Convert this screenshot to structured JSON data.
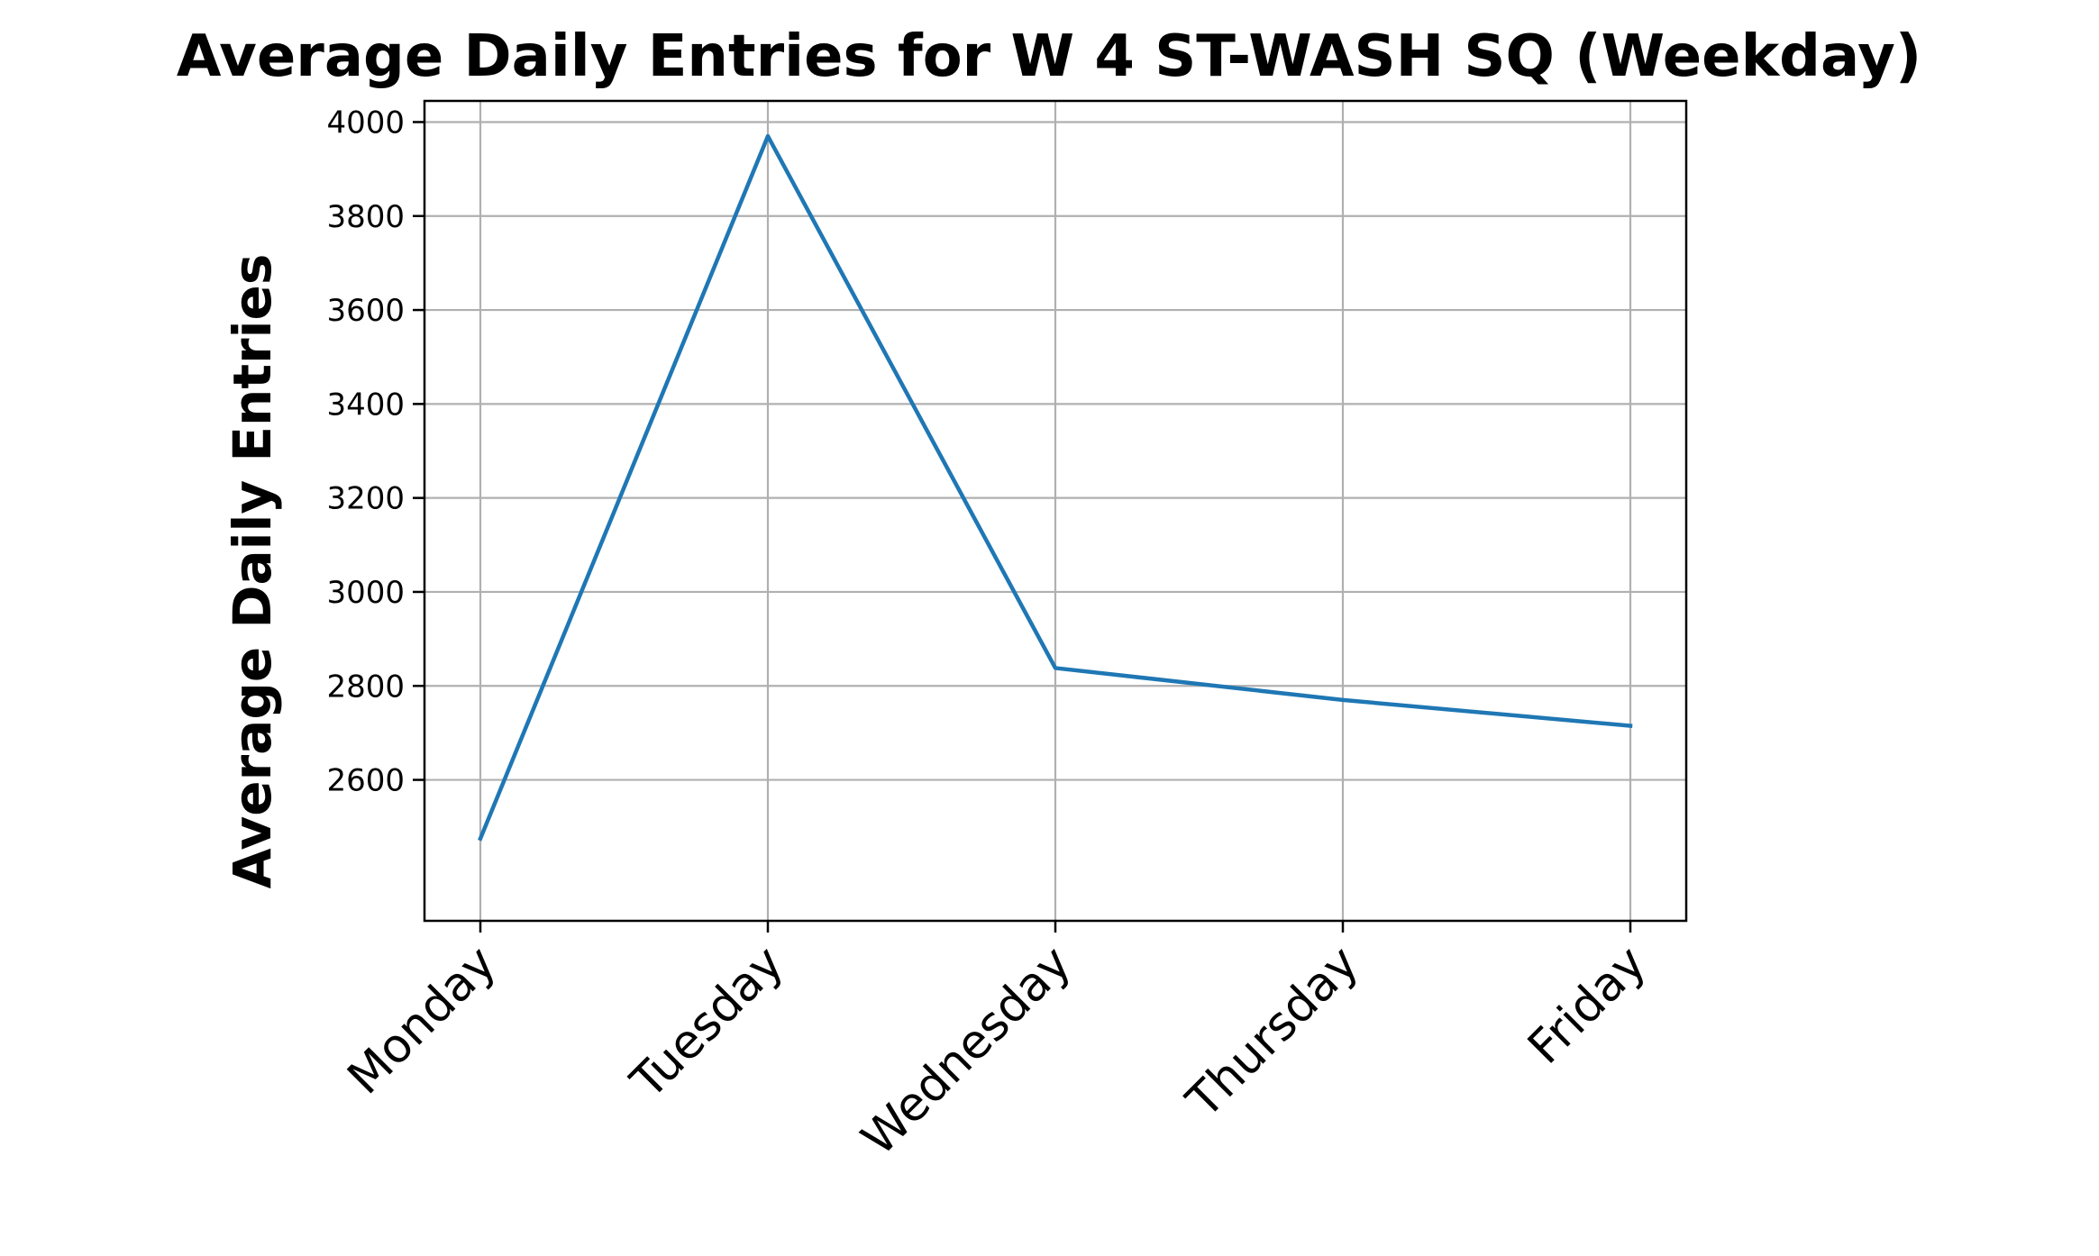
{
  "chart_data": {
    "type": "line",
    "title": "Average Daily Entries for W 4 ST-WASH SQ (Weekday)",
    "xlabel": "",
    "ylabel": "Average Daily Entries",
    "categories": [
      "Monday",
      "Tuesday",
      "Wednesday",
      "Thursday",
      "Friday"
    ],
    "series": [
      {
        "values": [
          2475,
          3970,
          2838,
          2770,
          2715
        ],
        "color": "#1f77b4"
      }
    ],
    "ylim": [
      2300,
      4045
    ],
    "yticks": [
      2600,
      2800,
      3000,
      3200,
      3400,
      3600,
      3800,
      4000
    ],
    "ytick_labels": [
      "2600",
      "2800",
      "3000",
      "3200",
      "3400",
      "3600",
      "3800",
      "4000"
    ],
    "grid": true,
    "legend": "none"
  }
}
